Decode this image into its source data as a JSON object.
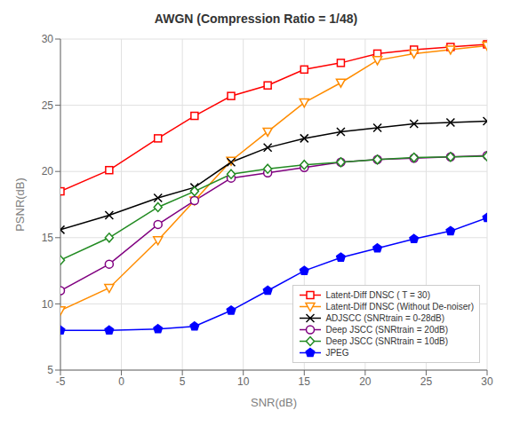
{
  "chart_data": {
    "type": "line",
    "title": "AWGN (Compression Ratio = 1/48)",
    "xlabel": "SNR(dB)",
    "ylabel": "PSNR(dB)",
    "xlim": [
      -5,
      30
    ],
    "ylim": [
      5,
      30
    ],
    "xticks": [
      -5,
      0,
      5,
      10,
      15,
      20,
      25,
      30
    ],
    "yticks": [
      5,
      10,
      15,
      20,
      25,
      30
    ],
    "grid": true,
    "legend": "lower right",
    "x": [
      -5,
      -1,
      3,
      6,
      9,
      12,
      15,
      18,
      21,
      24,
      27,
      30
    ],
    "series": [
      {
        "name": "Latent-Diff DNSC ( T = 30)",
        "color": "#FF0000",
        "marker": "square",
        "values": [
          18.5,
          20.1,
          22.5,
          24.2,
          25.7,
          26.5,
          27.7,
          28.2,
          28.9,
          29.2,
          29.4,
          29.6
        ]
      },
      {
        "name": "Latent-Diff DNSC (Without De-noiser)",
        "color": "#FF8C00",
        "marker": "triangle-down",
        "values": [
          9.5,
          11.2,
          14.8,
          17.8,
          20.8,
          23.0,
          25.2,
          26.7,
          28.4,
          28.9,
          29.2,
          29.5
        ]
      },
      {
        "name": "ADJSCC (SNRtrain = 0-28dB)",
        "color": "#000000",
        "marker": "x",
        "values": [
          15.6,
          16.7,
          18.0,
          18.8,
          20.7,
          21.8,
          22.5,
          23.0,
          23.3,
          23.6,
          23.7,
          23.8
        ]
      },
      {
        "name": "Deep JSCC (SNRtrain = 20dB)",
        "color": "#800080",
        "marker": "circle",
        "values": [
          11.0,
          13.0,
          16.0,
          17.8,
          19.5,
          19.9,
          20.3,
          20.7,
          20.9,
          21.0,
          21.1,
          21.2
        ]
      },
      {
        "name": "Deep JSCC (SNRtrain = 10dB)",
        "color": "#228B22",
        "marker": "diamond",
        "values": [
          13.3,
          15.0,
          17.3,
          18.5,
          19.8,
          20.2,
          20.5,
          20.7,
          20.9,
          21.05,
          21.1,
          21.15
        ]
      },
      {
        "name": "JPEG",
        "color": "#0000FF",
        "marker": "pentagon",
        "values": [
          8.0,
          8.0,
          8.1,
          8.3,
          9.5,
          11.0,
          12.5,
          13.5,
          14.2,
          14.9,
          15.5,
          16.5
        ]
      }
    ]
  }
}
